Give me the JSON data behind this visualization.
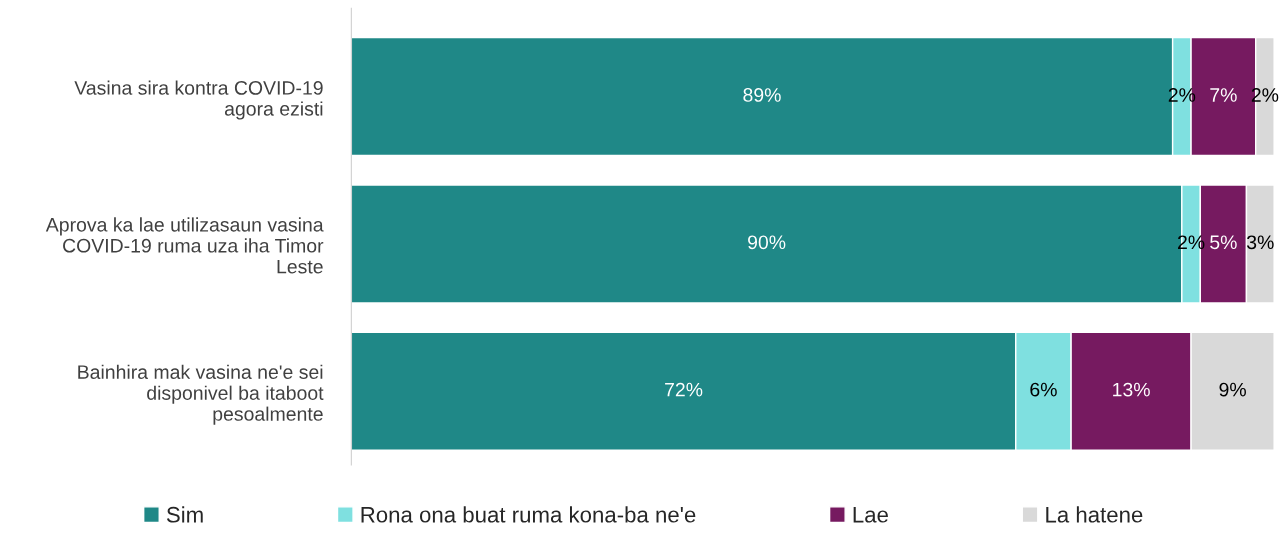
{
  "chart_data": {
    "type": "bar",
    "orientation": "horizontal",
    "stacked": true,
    "legend": "bottom",
    "tick_labels": "y",
    "categories": [
      "Vasina sira kontra COVID-19 agora ezisti",
      "Aprova ka lae utilizasaun vasina COVID-19 ruma uza iha Timor Leste",
      "Bainhira mak vasina ne'e sei disponivel ba itaboot pesoalmente"
    ],
    "series": [
      {
        "name": "Sim",
        "color": "#1f8887",
        "values": [
          89,
          90,
          72
        ],
        "value_labels": [
          "89%",
          "90%",
          "72%"
        ]
      },
      {
        "name": "Rona ona buat ruma kona-ba ne'e",
        "color": "#7fe0e0",
        "values": [
          2,
          2,
          6
        ],
        "value_labels": [
          "2%",
          "2%",
          "6%"
        ]
      },
      {
        "name": "Lae",
        "color": "#761a60",
        "values": [
          7,
          5,
          13
        ],
        "value_labels": [
          "7%",
          "5%",
          "13%"
        ]
      },
      {
        "name": "La hatene",
        "color": "#d9d9d9",
        "values": [
          2,
          3,
          9
        ],
        "value_labels": [
          "2%",
          "3%",
          "9%"
        ]
      }
    ]
  }
}
